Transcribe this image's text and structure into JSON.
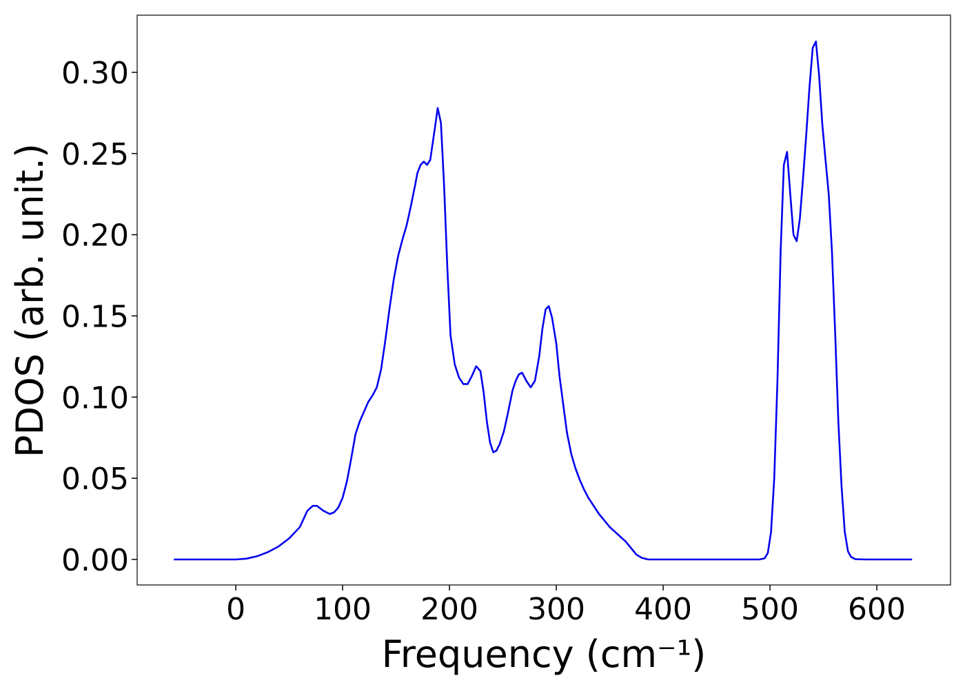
{
  "chart_data": {
    "type": "line",
    "xlabel": "Frequency (cm⁻¹)",
    "ylabel": "PDOS (arb. unit.)",
    "xlim": [
      -92.3,
      669
    ],
    "ylim": [
      -0.0157,
      0.3352
    ],
    "xticks": [
      0,
      100,
      200,
      300,
      400,
      500,
      600
    ],
    "yticks": [
      {
        "value": 0,
        "label": "0.00"
      },
      {
        "value": 0.05,
        "label": "0.05"
      },
      {
        "value": 0.1,
        "label": "0.10"
      },
      {
        "value": 0.15,
        "label": "0.15"
      },
      {
        "value": 0.2,
        "label": "0.20"
      },
      {
        "value": 0.25,
        "label": "0.25"
      },
      {
        "value": 0.3,
        "label": "0.30"
      }
    ],
    "series": [
      {
        "color": "#0000ee",
        "x": [
          -58,
          0,
          10,
          20,
          30,
          40,
          50,
          60,
          67,
          72,
          76,
          82,
          88,
          92,
          96,
          100,
          104,
          108,
          112,
          116,
          120,
          124,
          128,
          132,
          136,
          140,
          144,
          148,
          152,
          156,
          160,
          164,
          168,
          170,
          173,
          176,
          179,
          182,
          186,
          189,
          192,
          195,
          198,
          201,
          205,
          209,
          213,
          217,
          221,
          225,
          229,
          232,
          235,
          238,
          241,
          244,
          247,
          251,
          255,
          259,
          262,
          265,
          268,
          272,
          276,
          280,
          284,
          287,
          290,
          293,
          296,
          300,
          303,
          307,
          310,
          314,
          318,
          322,
          326,
          330,
          335,
          340,
          345,
          350,
          355,
          360,
          365,
          370,
          375,
          380,
          386,
          490,
          495,
          498,
          501,
          504,
          507,
          510,
          513,
          516,
          519,
          522,
          525,
          528,
          531,
          534,
          537,
          540,
          543,
          546,
          549,
          552,
          555,
          558,
          561,
          564,
          567,
          570,
          573,
          576,
          580,
          590,
          633
        ],
        "values": [
          0,
          0,
          0.0005,
          0.002,
          0.0045,
          0.008,
          0.013,
          0.02,
          0.03,
          0.033,
          0.033,
          0.03,
          0.028,
          0.029,
          0.032,
          0.038,
          0.048,
          0.062,
          0.077,
          0.085,
          0.091,
          0.097,
          0.101,
          0.106,
          0.117,
          0.135,
          0.155,
          0.173,
          0.187,
          0.197,
          0.206,
          0.218,
          0.231,
          0.238,
          0.243,
          0.245,
          0.243,
          0.246,
          0.264,
          0.278,
          0.269,
          0.23,
          0.18,
          0.138,
          0.12,
          0.112,
          0.108,
          0.108,
          0.113,
          0.119,
          0.116,
          0.103,
          0.085,
          0.072,
          0.066,
          0.067,
          0.071,
          0.079,
          0.091,
          0.104,
          0.11,
          0.114,
          0.115,
          0.11,
          0.106,
          0.11,
          0.125,
          0.142,
          0.154,
          0.156,
          0.149,
          0.133,
          0.113,
          0.093,
          0.078,
          0.065,
          0.056,
          0.049,
          0.043,
          0.038,
          0.033,
          0.028,
          0.024,
          0.02,
          0.017,
          0.014,
          0.011,
          0.007,
          0.003,
          0.001,
          0,
          0,
          0.0007,
          0.004,
          0.017,
          0.05,
          0.11,
          0.19,
          0.243,
          0.251,
          0.225,
          0.2,
          0.196,
          0.21,
          0.235,
          0.262,
          0.291,
          0.315,
          0.319,
          0.298,
          0.268,
          0.246,
          0.225,
          0.19,
          0.14,
          0.085,
          0.045,
          0.017,
          0.005,
          0.0015,
          0.0002,
          0,
          0
        ]
      }
    ]
  }
}
